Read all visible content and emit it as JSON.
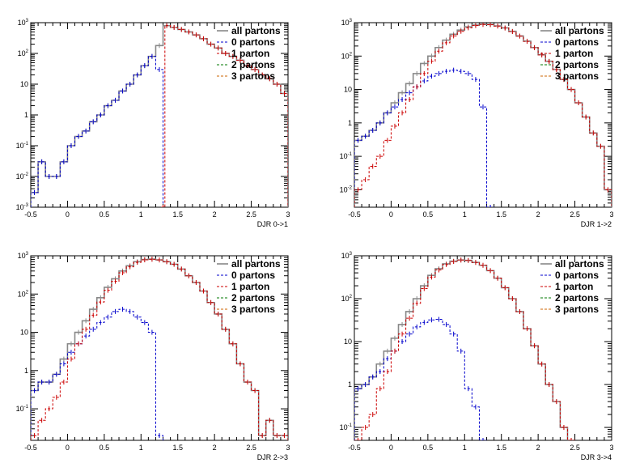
{
  "chart_data": [
    {
      "type": "line",
      "xlabel": "DJR 0->1",
      "xlim": [
        -0.5,
        3
      ],
      "ylim": [
        0.001,
        1000
      ],
      "y_scale": "log",
      "x_ticks": [
        "-0.5",
        "0",
        "0.5",
        "1",
        "1.5",
        "2",
        "2.5",
        "3"
      ],
      "y_ticks": [
        "10^-3",
        "10^-2",
        "10^-1",
        "1",
        "10",
        "10^2",
        "10^3"
      ],
      "legend": [
        "all partons",
        "0 partons",
        "1 parton",
        "2 partons",
        "3 partons"
      ],
      "legend_position": "top-right",
      "series": [
        {
          "name": "all partons",
          "x": [
            -0.45,
            -0.35,
            -0.25,
            -0.15,
            -0.05,
            0.05,
            0.15,
            0.25,
            0.35,
            0.45,
            0.55,
            0.65,
            0.75,
            0.85,
            0.95,
            1.05,
            1.15,
            1.25,
            1.35,
            1.45,
            1.55,
            1.65,
            1.75,
            1.85,
            1.95,
            2.05,
            2.15,
            2.25,
            2.35,
            2.45,
            2.55,
            2.65,
            2.75,
            2.85,
            2.95
          ],
          "values": [
            0.003,
            0.03,
            0.01,
            0.01,
            0.03,
            0.1,
            0.2,
            0.3,
            0.6,
            1,
            2,
            3,
            6,
            10,
            20,
            40,
            80,
            180,
            800,
            700,
            600,
            500,
            400,
            300,
            200,
            150,
            100,
            80,
            60,
            40,
            30,
            20,
            15,
            10,
            5
          ]
        },
        {
          "name": "0 partons",
          "x": [
            -0.45,
            -0.35,
            -0.25,
            -0.15,
            -0.05,
            0.05,
            0.15,
            0.25,
            0.35,
            0.45,
            0.55,
            0.65,
            0.75,
            0.85,
            0.95,
            1.05,
            1.15,
            1.25
          ],
          "values": [
            0.003,
            0.03,
            0.01,
            0.01,
            0.03,
            0.1,
            0.2,
            0.3,
            0.6,
            1,
            2,
            3,
            6,
            10,
            20,
            40,
            80,
            30
          ]
        },
        {
          "name": "1 parton",
          "x": [
            1.3,
            1.35,
            1.45,
            1.55,
            1.65,
            1.75,
            1.85,
            1.95,
            2.05,
            2.15,
            2.25,
            2.35,
            2.45,
            2.55,
            2.65,
            2.75,
            2.85,
            2.95
          ],
          "values": [
            0.001,
            800,
            700,
            600,
            500,
            400,
            300,
            200,
            150,
            100,
            80,
            60,
            40,
            30,
            20,
            15,
            10,
            5
          ]
        }
      ]
    },
    {
      "type": "line",
      "xlabel": "DJR 1->2",
      "xlim": [
        -0.5,
        3
      ],
      "ylim": [
        0.003,
        1000
      ],
      "y_scale": "log",
      "x_ticks": [
        "-0.5",
        "0",
        "0.5",
        "1",
        "1.5",
        "2",
        "2.5",
        "3"
      ],
      "y_ticks": [
        "10^-2",
        "10^-1",
        "1",
        "10",
        "10^2",
        "10^3"
      ],
      "legend": [
        "all partons",
        "0 partons",
        "1 parton",
        "2 partons",
        "3 partons"
      ],
      "legend_position": "top-right",
      "series": [
        {
          "name": "all partons",
          "x": [
            -0.45,
            -0.35,
            -0.25,
            -0.15,
            -0.05,
            0.05,
            0.15,
            0.25,
            0.35,
            0.45,
            0.55,
            0.65,
            0.75,
            0.85,
            0.95,
            1.05,
            1.15,
            1.25,
            1.35,
            1.45,
            1.55,
            1.65,
            1.75,
            1.85,
            1.95,
            2.05,
            2.15,
            2.25,
            2.35,
            2.45,
            2.55,
            2.65,
            2.75,
            2.85,
            2.95
          ],
          "values": [
            0.3,
            0.4,
            0.6,
            1,
            2,
            4,
            8,
            15,
            30,
            60,
            100,
            180,
            300,
            450,
            600,
            750,
            850,
            900,
            880,
            800,
            700,
            550,
            400,
            280,
            180,
            110,
            70,
            40,
            20,
            10,
            4,
            1.5,
            0.5,
            0.2,
            0.01
          ]
        },
        {
          "name": "0 partons",
          "x": [
            -0.45,
            -0.35,
            -0.25,
            -0.15,
            -0.05,
            0.05,
            0.15,
            0.25,
            0.35,
            0.45,
            0.55,
            0.65,
            0.75,
            0.85,
            0.95,
            1.05,
            1.15,
            1.25,
            1.35
          ],
          "values": [
            0.3,
            0.4,
            0.6,
            1,
            2,
            3,
            5,
            8,
            12,
            18,
            25,
            30,
            35,
            38,
            35,
            30,
            20,
            3,
            0.003
          ]
        },
        {
          "name": "1 parton",
          "x": [
            -0.45,
            -0.35,
            -0.25,
            -0.15,
            -0.05,
            0.05,
            0.15,
            0.25,
            0.35,
            0.45,
            0.55,
            0.65,
            0.75,
            0.85,
            0.95,
            1.05,
            1.15,
            1.25,
            1.35,
            1.45,
            1.55,
            1.65,
            1.75,
            1.85,
            1.95,
            2.05,
            2.15,
            2.25,
            2.35,
            2.45,
            2.55,
            2.65,
            2.75,
            2.85,
            2.95
          ],
          "values": [
            0.01,
            0.02,
            0.05,
            0.1,
            0.3,
            0.8,
            2,
            5,
            12,
            30,
            70,
            140,
            250,
            400,
            550,
            700,
            820,
            880,
            870,
            790,
            690,
            540,
            395,
            275,
            178,
            108,
            69,
            39,
            20,
            10,
            4,
            1.5,
            0.5,
            0.2,
            0.01
          ]
        }
      ]
    },
    {
      "type": "line",
      "xlabel": "DJR 2->3",
      "xlim": [
        -0.5,
        3
      ],
      "ylim": [
        0.015,
        1000
      ],
      "y_scale": "log",
      "x_ticks": [
        "-0.5",
        "0",
        "0.5",
        "1",
        "1.5",
        "2",
        "2.5",
        "3"
      ],
      "y_ticks": [
        "10^-1",
        "1",
        "10",
        "10^2",
        "10^3"
      ],
      "legend": [
        "all partons",
        "0 partons",
        "1 parton",
        "2 partons",
        "3 partons"
      ],
      "legend_position": "top-right",
      "series": [
        {
          "name": "all partons",
          "x": [
            -0.45,
            -0.35,
            -0.25,
            -0.15,
            -0.05,
            0.05,
            0.15,
            0.25,
            0.35,
            0.45,
            0.55,
            0.65,
            0.75,
            0.85,
            0.95,
            1.05,
            1.15,
            1.25,
            1.35,
            1.45,
            1.55,
            1.65,
            1.75,
            1.85,
            1.95,
            2.05,
            2.15,
            2.25,
            2.35,
            2.45,
            2.55,
            2.65,
            2.75,
            2.85,
            2.95
          ],
          "values": [
            0.3,
            0.5,
            0.5,
            0.8,
            2,
            5,
            10,
            20,
            40,
            80,
            150,
            250,
            400,
            550,
            700,
            800,
            820,
            780,
            700,
            600,
            450,
            300,
            200,
            120,
            60,
            30,
            12,
            5,
            1.5,
            0.5,
            0.3,
            0.02,
            0.05,
            0.02,
            0.02
          ]
        },
        {
          "name": "0 partons",
          "x": [
            -0.45,
            -0.35,
            -0.25,
            -0.15,
            -0.05,
            0.05,
            0.15,
            0.25,
            0.35,
            0.45,
            0.55,
            0.65,
            0.75,
            0.85,
            0.95,
            1.05,
            1.15,
            1.25
          ],
          "values": [
            0.3,
            0.5,
            0.5,
            0.8,
            1.5,
            3,
            5,
            8,
            12,
            18,
            25,
            35,
            40,
            35,
            25,
            18,
            10,
            0.02
          ]
        },
        {
          "name": "1 parton",
          "x": [
            -0.45,
            -0.35,
            -0.25,
            -0.15,
            -0.05,
            0.05,
            0.15,
            0.25,
            0.35,
            0.45,
            0.55,
            0.65,
            0.75,
            0.85,
            0.95,
            1.05,
            1.15,
            1.25,
            1.35,
            1.45,
            1.55,
            1.65,
            1.75,
            1.85,
            1.95,
            2.05,
            2.15,
            2.25,
            2.35,
            2.45,
            2.55,
            2.65,
            2.75,
            2.85,
            2.95
          ],
          "values": [
            0.02,
            0.05,
            0.1,
            0.2,
            0.5,
            2,
            5,
            12,
            28,
            62,
            125,
            215,
            360,
            515,
            675,
            782,
            810,
            780,
            700,
            600,
            450,
            300,
            200,
            120,
            60,
            30,
            12,
            5,
            1.5,
            0.5,
            0.3,
            0.02,
            0.05,
            0.02,
            0.02
          ]
        }
      ]
    },
    {
      "type": "line",
      "xlabel": "DJR 3->4",
      "xlim": [
        -0.5,
        3
      ],
      "ylim": [
        0.05,
        1000
      ],
      "y_scale": "log",
      "x_ticks": [
        "-0.5",
        "0",
        "0.5",
        "1",
        "1.5",
        "2",
        "2.5",
        "3"
      ],
      "y_ticks": [
        "10^-1",
        "1",
        "10",
        "10^2",
        "10^3"
      ],
      "legend": [
        "all partons",
        "0 partons",
        "1 parton",
        "2 partons",
        "3 partons"
      ],
      "legend_position": "top-right",
      "series": [
        {
          "name": "all partons",
          "x": [
            -0.45,
            -0.35,
            -0.25,
            -0.15,
            -0.05,
            0.05,
            0.15,
            0.25,
            0.35,
            0.45,
            0.55,
            0.65,
            0.75,
            0.85,
            0.95,
            1.05,
            1.15,
            1.25,
            1.35,
            1.45,
            1.55,
            1.65,
            1.75,
            1.85,
            1.95,
            2.05,
            2.15,
            2.25,
            2.35,
            2.45
          ],
          "values": [
            0.8,
            1,
            1.5,
            3,
            6,
            12,
            25,
            50,
            100,
            200,
            350,
            500,
            650,
            750,
            800,
            780,
            700,
            600,
            450,
            300,
            180,
            100,
            50,
            20,
            8,
            3,
            1,
            0.4,
            0.1,
            0.05
          ]
        },
        {
          "name": "0 partons",
          "x": [
            -0.45,
            -0.35,
            -0.25,
            -0.15,
            -0.05,
            0.05,
            0.15,
            0.25,
            0.35,
            0.45,
            0.55,
            0.65,
            0.75,
            0.85,
            0.95,
            1.05,
            1.15,
            1.25
          ],
          "values": [
            0.8,
            1,
            1.5,
            2,
            4,
            6,
            10,
            15,
            22,
            28,
            32,
            33,
            25,
            15,
            6,
            0.8,
            0.3,
            0.05
          ]
        },
        {
          "name": "1 parton",
          "x": [
            -0.45,
            -0.35,
            -0.25,
            -0.15,
            -0.05,
            0.05,
            0.15,
            0.25,
            0.35,
            0.45,
            0.55,
            0.65,
            0.75,
            0.85,
            0.95,
            1.05,
            1.15,
            1.25,
            1.35,
            1.45,
            1.55,
            1.65,
            1.75,
            1.85,
            1.95,
            2.05,
            2.15,
            2.25,
            2.35,
            2.45
          ],
          "values": [
            0.05,
            0.1,
            0.2,
            0.8,
            2,
            6,
            15,
            35,
            78,
            172,
            318,
            467,
            625,
            735,
            794,
            779,
            700,
            600,
            450,
            300,
            180,
            100,
            50,
            20,
            8,
            3,
            1,
            0.4,
            0.1,
            0.05
          ]
        }
      ]
    }
  ]
}
